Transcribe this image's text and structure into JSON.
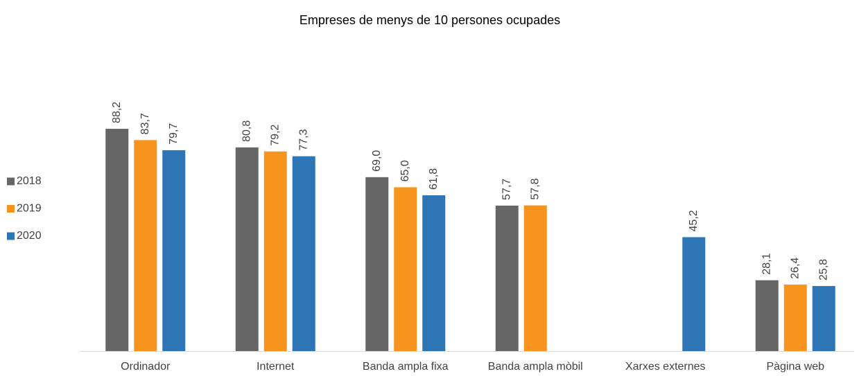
{
  "chart_data": {
    "type": "bar",
    "title": "Empreses de menys de 10 persones ocupades",
    "categories": [
      "Ordinador",
      "Internet",
      "Banda ampla fixa",
      "Banda ampla mòbil",
      "Xarxes externes",
      "Pàgina web"
    ],
    "series": [
      {
        "name": "2018",
        "color": "#666666",
        "values": [
          88.2,
          80.8,
          69.0,
          57.7,
          null,
          28.1
        ],
        "value_labels": [
          "88,2",
          "80,8",
          "69,0",
          "57,7",
          null,
          "28,1"
        ]
      },
      {
        "name": "2019",
        "color": "#f7941d",
        "values": [
          83.7,
          79.2,
          65.0,
          57.8,
          null,
          26.4
        ],
        "value_labels": [
          "83,7",
          "79,2",
          "65,0",
          "57,8",
          null,
          "26,4"
        ]
      },
      {
        "name": "2020",
        "color": "#2e75b6",
        "values": [
          79.7,
          77.3,
          61.8,
          null,
          45.2,
          25.8
        ],
        "value_labels": [
          "79,7",
          "77,3",
          "61,8",
          null,
          "45,2",
          "25,8"
        ]
      }
    ],
    "legend": "left"
  }
}
